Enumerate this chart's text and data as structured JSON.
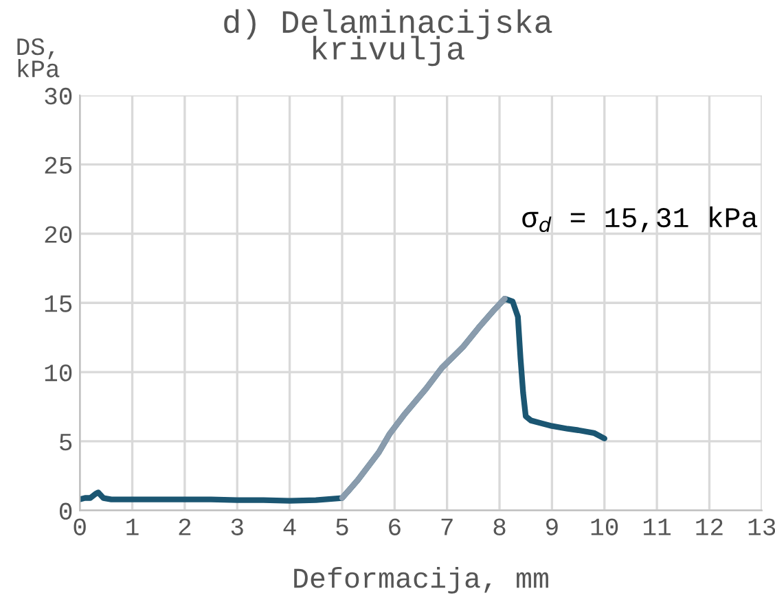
{
  "chart_data": {
    "type": "line",
    "title": "d) Delaminacijska\nkrivulja",
    "xlabel": "Deformacija, mm",
    "ylabel": "DS,\nkPa",
    "annotations": [
      "σ$_{d}$ = 15,31 kPa"
    ],
    "xlim": [
      0,
      13
    ],
    "xticks": [
      0,
      1,
      2,
      3,
      4,
      5,
      6,
      7,
      8,
      9,
      10,
      11,
      12,
      13
    ],
    "ylim": [
      0,
      30
    ],
    "yticks": [
      0,
      5,
      10,
      15,
      20,
      25,
      30
    ],
    "grid": true,
    "series": [
      {
        "color": "#1b5672",
        "x": [
          0,
          0.1,
          0.2,
          0.3,
          0.35,
          0.45,
          0.6,
          1,
          1.5,
          2,
          2.5,
          3,
          3.5,
          4,
          4.5,
          5,
          5.3,
          5.7,
          5.9,
          6.2,
          6.6,
          6.9,
          7.3,
          7.6,
          7.9,
          8.1,
          8.25,
          8.35,
          8.4,
          8.45,
          8.5,
          8.6,
          8.8,
          9,
          9.3,
          9.5,
          9.8,
          10
        ],
        "values": [
          0.8,
          0.9,
          0.9,
          1.2,
          1.3,
          0.9,
          0.8,
          0.8,
          0.8,
          0.8,
          0.8,
          0.75,
          0.75,
          0.7,
          0.75,
          0.9,
          2.2,
          4.2,
          5.5,
          7.0,
          8.8,
          10.3,
          11.8,
          13.2,
          14.5,
          15.3,
          15.1,
          14.0,
          11.0,
          8.5,
          6.8,
          6.5,
          6.3,
          6.1,
          5.9,
          5.8,
          5.6,
          5.2
        ]
      },
      {
        "color": "#8a9cad",
        "x": [
          5,
          5.3,
          5.7,
          5.9,
          6.2,
          6.6,
          6.9,
          7.3,
          7.6,
          7.9,
          8.1
        ],
        "values": [
          0.9,
          2.2,
          4.2,
          5.5,
          7.0,
          8.8,
          10.3,
          11.8,
          13.2,
          14.5,
          15.3
        ]
      }
    ]
  }
}
